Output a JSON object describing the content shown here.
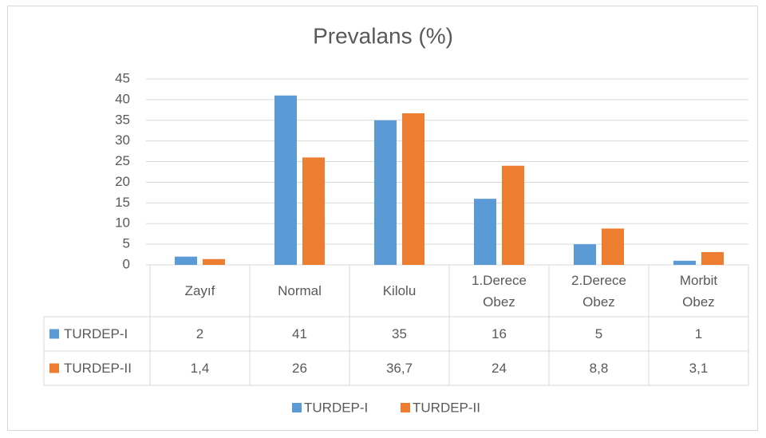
{
  "chart_data": {
    "type": "bar",
    "title": "Prevalans (%)",
    "categories": [
      "Zayıf",
      "Normal",
      "Kilolu",
      "1.Derece Obez",
      "2.Derece Obez",
      "Morbit Obez"
    ],
    "series": [
      {
        "name": "TURDEP-I",
        "color": "#5b9bd5",
        "values": [
          2,
          41,
          35,
          16,
          5,
          1
        ]
      },
      {
        "name": "TURDEP-II",
        "color": "#ed7d31",
        "values": [
          1.4,
          26,
          36.7,
          24,
          8.8,
          3.1
        ],
        "value_labels": [
          "1,4",
          "26",
          "36,7",
          "24",
          "8,8",
          "3,1"
        ]
      }
    ],
    "ylim": [
      0,
      45
    ],
    "yticks": [
      0,
      5,
      10,
      15,
      20,
      25,
      30,
      35,
      40,
      45
    ],
    "grid": true,
    "legend": "bottom"
  }
}
